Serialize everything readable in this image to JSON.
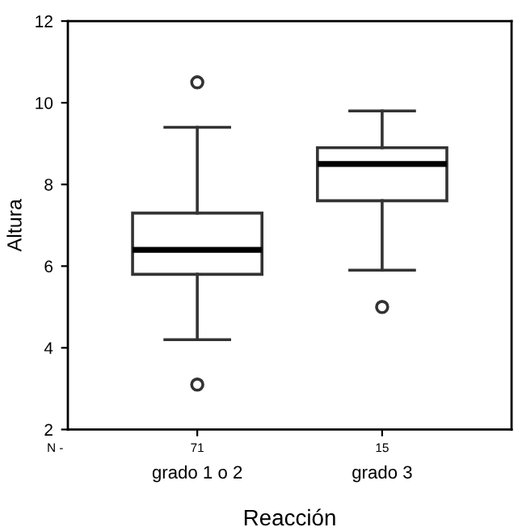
{
  "chart_data": {
    "type": "box",
    "xlabel": "Reacción",
    "ylabel": "Altura",
    "categories": [
      "grado 1 o 2",
      "grado 3"
    ],
    "boxes": [
      {
        "low": 4.2,
        "q1": 5.8,
        "median": 6.4,
        "q3": 7.3,
        "high": 9.4,
        "outliers": [
          10.5,
          3.1
        ]
      },
      {
        "low": 5.9,
        "q1": 7.6,
        "median": 8.5,
        "q3": 8.9,
        "high": 9.8,
        "outliers": [
          5.0
        ]
      }
    ],
    "color": "#333333",
    "ylim": [
      2,
      12
    ],
    "yticks": [
      2,
      4,
      6,
      8,
      10,
      12
    ],
    "grid": false,
    "annotations": [
      "N -",
      "71",
      "15"
    ]
  }
}
